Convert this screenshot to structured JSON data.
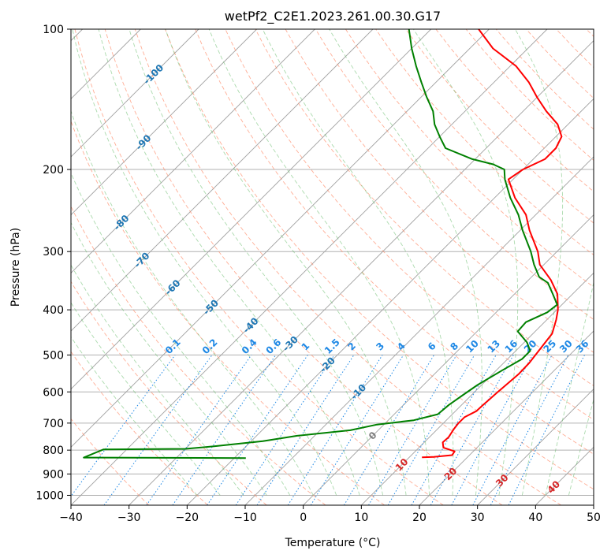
{
  "chart_data": {
    "type": "line",
    "title": "wetPf2_C2E1.2023.261.00.30.G17",
    "xlabel": "Temperature (°C)",
    "ylabel": "Pressure (hPa)",
    "xlim": [
      -40,
      50
    ],
    "ylim": [
      1050,
      100
    ],
    "y_scale": "log",
    "grid": true,
    "x_ticks": [
      -40,
      -30,
      -20,
      -10,
      0,
      10,
      20,
      30,
      40,
      50
    ],
    "y_ticks": [
      100,
      200,
      300,
      400,
      500,
      600,
      700,
      800,
      900,
      1000
    ],
    "skew_isotherm_labels": [
      "-100",
      "-90",
      "-80",
      "-70",
      "-60",
      "-50",
      "-40",
      "-30",
      "-20",
      "-10",
      "0",
      "10",
      "20",
      "30",
      "40"
    ],
    "mixing_ratio_labels": [
      "0.1",
      "0.2",
      "0.4",
      "0.6",
      "1",
      "1.5",
      "2",
      "3",
      "4",
      "6",
      "8",
      "10",
      "13",
      "16",
      "20",
      "25",
      "30",
      "36"
    ],
    "colors": {
      "temperature": "#ff0000",
      "dewpoint": "#008000",
      "dry_adiabat": "#ff8c69",
      "moist_adiabat": "#66bb6a",
      "mixing_ratio": "#1e88e5",
      "isotherm": "#808080",
      "isotherm_label_cold": "#1f77b4",
      "isotherm_label_warm": "#d62728"
    },
    "series": [
      {
        "name": "Temperature",
        "points": [
          {
            "p": 829,
            "t": 12.2
          },
          {
            "p": 827,
            "t": 14.1
          },
          {
            "p": 820,
            "t": 17.0
          },
          {
            "p": 805,
            "t": 16.8
          },
          {
            "p": 790,
            "t": 14.2
          },
          {
            "p": 770,
            "t": 13.2
          },
          {
            "p": 750,
            "t": 13.3
          },
          {
            "p": 720,
            "t": 12.8
          },
          {
            "p": 700,
            "t": 12.6
          },
          {
            "p": 680,
            "t": 12.6
          },
          {
            "p": 660,
            "t": 13.6
          },
          {
            "p": 640,
            "t": 13.7
          },
          {
            "p": 600,
            "t": 14.0
          },
          {
            "p": 550,
            "t": 14.5
          },
          {
            "p": 520,
            "t": 14.4
          },
          {
            "p": 480,
            "t": 13.8
          },
          {
            "p": 450,
            "t": 13.3
          },
          {
            "p": 420,
            "t": 11.6
          },
          {
            "p": 400,
            "t": 10.2
          },
          {
            "p": 370,
            "t": 7.4
          },
          {
            "p": 345,
            "t": 3.8
          },
          {
            "p": 320,
            "t": -0.7
          },
          {
            "p": 300,
            "t": -3.3
          },
          {
            "p": 270,
            "t": -8.4
          },
          {
            "p": 250,
            "t": -11.7
          },
          {
            "p": 230,
            "t": -16.5
          },
          {
            "p": 210,
            "t": -20.8
          },
          {
            "p": 200,
            "t": -20.0
          },
          {
            "p": 190,
            "t": -18.0
          },
          {
            "p": 180,
            "t": -18.0
          },
          {
            "p": 170,
            "t": -19.0
          },
          {
            "p": 160,
            "t": -21.8
          },
          {
            "p": 150,
            "t": -26.0
          },
          {
            "p": 140,
            "t": -30.0
          },
          {
            "p": 130,
            "t": -34.0
          },
          {
            "p": 120,
            "t": -39.0
          },
          {
            "p": 110,
            "t": -46.0
          },
          {
            "p": 100,
            "t": -51.8
          }
        ]
      },
      {
        "name": "Dewpoint",
        "points": [
          {
            "p": 832,
            "t": -18.0
          },
          {
            "p": 830,
            "t": -46.0
          },
          {
            "p": 797,
            "t": -44.0
          },
          {
            "p": 795,
            "t": -30.0
          },
          {
            "p": 785,
            "t": -25.5
          },
          {
            "p": 765,
            "t": -18.0
          },
          {
            "p": 745,
            "t": -13.0
          },
          {
            "p": 725,
            "t": -4.8
          },
          {
            "p": 705,
            "t": -1.2
          },
          {
            "p": 690,
            "t": 4.4
          },
          {
            "p": 670,
            "t": 7.5
          },
          {
            "p": 640,
            "t": 7.8
          },
          {
            "p": 610,
            "t": 8.5
          },
          {
            "p": 580,
            "t": 9.3
          },
          {
            "p": 540,
            "t": 11.0
          },
          {
            "p": 510,
            "t": 12.5
          },
          {
            "p": 490,
            "t": 12.5
          },
          {
            "p": 470,
            "t": 10.5
          },
          {
            "p": 445,
            "t": 7.0
          },
          {
            "p": 425,
            "t": 6.8
          },
          {
            "p": 405,
            "t": 8.8
          },
          {
            "p": 390,
            "t": 9.2
          },
          {
            "p": 370,
            "t": 6.6
          },
          {
            "p": 350,
            "t": 3.8
          },
          {
            "p": 340,
            "t": 1.3
          },
          {
            "p": 320,
            "t": -1.7
          },
          {
            "p": 300,
            "t": -4.5
          },
          {
            "p": 270,
            "t": -9.6
          },
          {
            "p": 250,
            "t": -13.0
          },
          {
            "p": 230,
            "t": -17.3
          },
          {
            "p": 210,
            "t": -21.4
          },
          {
            "p": 200,
            "t": -23.2
          },
          {
            "p": 195,
            "t": -26.0
          },
          {
            "p": 190,
            "t": -30.5
          },
          {
            "p": 180,
            "t": -37.0
          },
          {
            "p": 170,
            "t": -40.0
          },
          {
            "p": 160,
            "t": -43.0
          },
          {
            "p": 150,
            "t": -45.5
          },
          {
            "p": 140,
            "t": -49.0
          },
          {
            "p": 130,
            "t": -52.5
          },
          {
            "p": 120,
            "t": -56.2
          },
          {
            "p": 110,
            "t": -60.0
          },
          {
            "p": 100,
            "t": -63.8
          }
        ]
      }
    ]
  }
}
